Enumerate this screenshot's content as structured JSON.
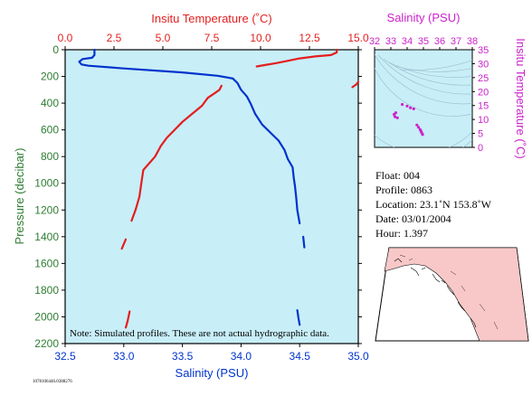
{
  "colors": {
    "temperature": "#e41e1e",
    "salinity": "#0033cc",
    "magenta": "#cc22cc",
    "panel_bg": "#c8eef8",
    "axis_green": "#2e7d32",
    "land": "#f8c8c8"
  },
  "chart_data": [
    {
      "type": "line",
      "top_xlabel": "Insitu Temperature (˚C)",
      "top_ticks": [
        "0.0",
        "2.5",
        "5.0",
        "7.5",
        "10.0",
        "12.5",
        "15.0"
      ],
      "top_xlim": [
        0,
        15
      ],
      "bottom_xlabel": "Salinity (PSU)",
      "bottom_ticks": [
        "32.5",
        "33.0",
        "33.5",
        "34.0",
        "34.5",
        "35.0"
      ],
      "bottom_xlim": [
        32.5,
        35.0
      ],
      "ylabel": "Pressure (decibar)",
      "y_ticks": [
        "0",
        "200",
        "400",
        "600",
        "800",
        "1000",
        "1200",
        "1400",
        "1600",
        "1800",
        "2000",
        "2200"
      ],
      "ylim": [
        0,
        2200
      ],
      "note": "Note: Simulated profiles.  These are not actual hydrographic data.",
      "series": [
        {
          "name": "Insitu Temperature",
          "axis": "top",
          "segments": [
            [
              [
                13.9,
                0
              ],
              [
                13.9,
                20
              ],
              [
                13.6,
                40
              ],
              [
                12.8,
                50
              ],
              [
                12.0,
                65
              ],
              [
                11.5,
                80
              ],
              [
                10.8,
                100
              ],
              [
                10.2,
                115
              ],
              [
                9.8,
                125
              ]
            ],
            [
              [
                15.0,
                240
              ],
              [
                14.9,
                260
              ],
              [
                14.7,
                280
              ]
            ],
            [
              [
                8.0,
                270
              ],
              [
                7.9,
                300
              ],
              [
                7.6,
                330
              ],
              [
                7.3,
                360
              ],
              [
                7.0,
                420
              ],
              [
                6.5,
                480
              ],
              [
                6.0,
                540
              ],
              [
                5.6,
                600
              ],
              [
                5.2,
                660
              ],
              [
                4.9,
                720
              ],
              [
                4.6,
                800
              ],
              [
                4.3,
                850
              ],
              [
                4.0,
                900
              ],
              [
                3.9,
                1000
              ],
              [
                3.8,
                1100
              ],
              [
                3.6,
                1200
              ],
              [
                3.4,
                1280
              ]
            ],
            [
              [
                3.1,
                1420
              ],
              [
                2.9,
                1490
              ]
            ],
            [
              [
                3.3,
                1960
              ],
              [
                3.2,
                2030
              ],
              [
                3.1,
                2080
              ]
            ]
          ]
        },
        {
          "name": "Salinity",
          "axis": "bottom",
          "segments": [
            [
              [
                32.75,
                0
              ],
              [
                32.75,
                40
              ],
              [
                32.73,
                60
              ],
              [
                32.65,
                70
              ],
              [
                32.62,
                90
              ],
              [
                32.64,
                110
              ],
              [
                32.7,
                120
              ],
              [
                33.0,
                140
              ],
              [
                33.5,
                170
              ],
              [
                33.8,
                195
              ],
              [
                33.93,
                215
              ]
            ],
            [
              [
                33.93,
                215
              ],
              [
                33.97,
                250
              ],
              [
                34.0,
                300
              ],
              [
                34.05,
                350
              ],
              [
                34.08,
                400
              ],
              [
                34.12,
                480
              ],
              [
                34.18,
                560
              ],
              [
                34.25,
                620
              ],
              [
                34.32,
                680
              ],
              [
                34.37,
                750
              ],
              [
                34.4,
                820
              ],
              [
                34.44,
                880
              ],
              [
                34.45,
                960
              ],
              [
                34.46,
                1020
              ],
              [
                34.47,
                1100
              ],
              [
                34.48,
                1200
              ],
              [
                34.5,
                1300
              ]
            ],
            [
              [
                34.53,
                1400
              ],
              [
                34.54,
                1480
              ]
            ],
            [
              [
                34.48,
                1950
              ],
              [
                34.49,
                2010
              ],
              [
                34.5,
                2060
              ]
            ]
          ]
        }
      ]
    },
    {
      "type": "scatter",
      "title": "Salinity (PSU)",
      "x_ticks": [
        "32",
        "33",
        "34",
        "35",
        "36",
        "37",
        "38"
      ],
      "xlim": [
        32,
        38
      ],
      "ylabel": "Insitu Temperature (˚C)",
      "y_ticks": [
        "0",
        "5",
        "10",
        "15",
        "20",
        "25",
        "30",
        "35"
      ],
      "ylim": [
        0,
        35
      ],
      "points": [
        [
          34.4,
          13.8
        ],
        [
          34.2,
          14.2
        ],
        [
          34.0,
          14.8
        ],
        [
          33.7,
          15.4
        ],
        [
          33.3,
          12.4
        ],
        [
          33.2,
          11.8
        ],
        [
          33.25,
          11.0
        ],
        [
          33.4,
          10.6
        ],
        [
          34.6,
          8.0
        ],
        [
          34.7,
          7.2
        ],
        [
          34.8,
          6.4
        ],
        [
          34.85,
          5.8
        ],
        [
          34.9,
          5.2
        ],
        [
          34.95,
          4.6
        ]
      ]
    }
  ],
  "info": {
    "float": "Float:  004",
    "profile": "Profile:  0863",
    "location": "Location:  23.1˚N  153.8˚W",
    "date": "Date:  03/01/2004",
    "hour": "Hour:  1.397"
  },
  "footer_id": "1078106446.0388276"
}
